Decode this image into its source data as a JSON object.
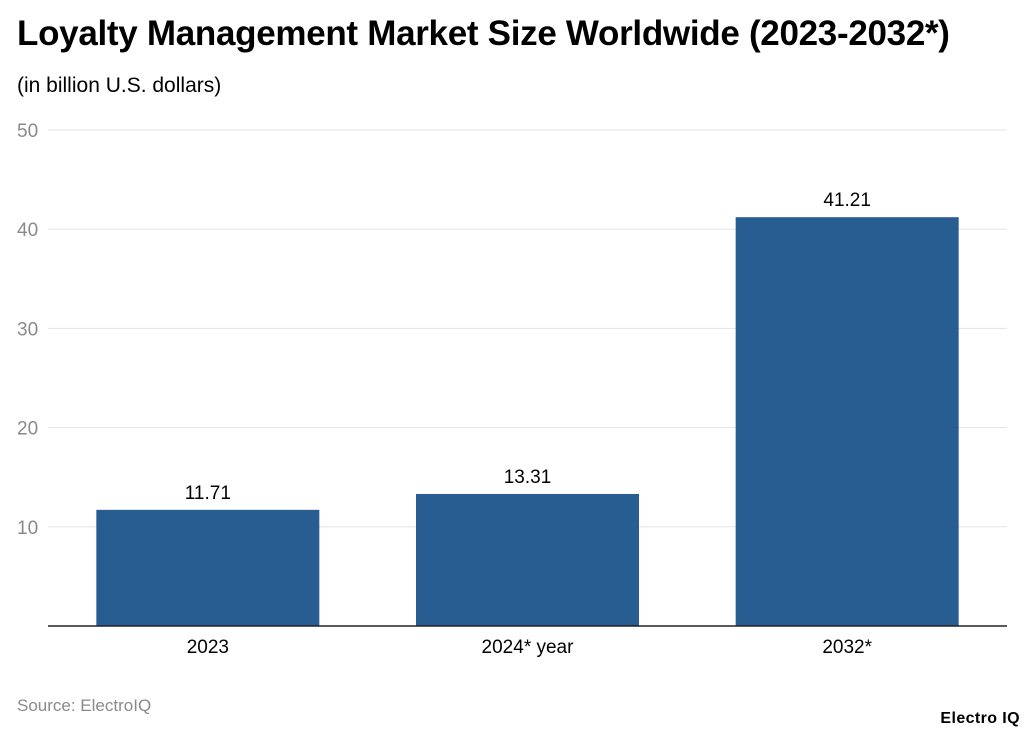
{
  "header": {
    "title": "Loyalty Management Market Size Worldwide (2023-2032*)",
    "subtitle": "(in billion U.S. dollars)"
  },
  "footer": {
    "source": "Source: ElectroIQ",
    "logo": "Electro IQ"
  },
  "colors": {
    "bar": "#275d91",
    "grid": "#e3e3e3",
    "axis": "#222222",
    "tick_text": "#8a8a8a"
  },
  "chart_data": {
    "type": "bar",
    "title": "Loyalty Management Market Size Worldwide (2023-2032*)",
    "subtitle": "(in billion U.S. dollars)",
    "categories": [
      "2023",
      "2024* year",
      "2032*"
    ],
    "values": [
      11.71,
      13.31,
      41.21
    ],
    "data_labels": [
      "11.71",
      "13.31",
      "41.21"
    ],
    "y_ticks": [
      10,
      20,
      30,
      40,
      50
    ],
    "ylim": [
      0,
      50
    ],
    "xlabel": "",
    "ylabel": "",
    "grid": true,
    "legend": "none"
  }
}
